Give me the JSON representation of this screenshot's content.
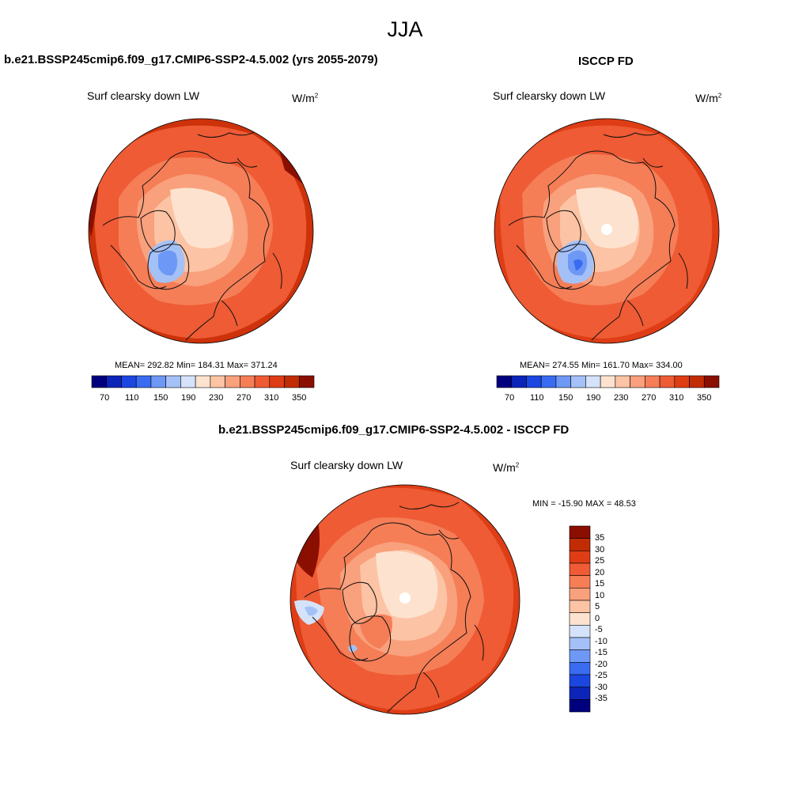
{
  "figure": {
    "season": "JJA"
  },
  "panels": [
    {
      "id": "model",
      "title": "b.e21.BSSP245cmip6.f09_g17.CMIP6-SSP2-4.5.002 (yrs 2055-2079)",
      "variable": "Surf clearsky down LW",
      "units_base": "W/m",
      "units_exp": "2",
      "stats": "MEAN= 292.82  Min= 184.31  Max= 371.24",
      "colorbar_labels": [
        "70",
        "110",
        "150",
        "190",
        "230",
        "270",
        "310",
        "350"
      ]
    },
    {
      "id": "obs",
      "title": "ISCCP FD",
      "variable": "Surf clearsky down LW",
      "units_base": "W/m",
      "units_exp": "2",
      "stats": "MEAN= 274.55  Min= 161.70  Max= 334.00",
      "colorbar_labels": [
        "70",
        "110",
        "150",
        "190",
        "230",
        "270",
        "310",
        "350"
      ]
    },
    {
      "id": "diff",
      "title": "b.e21.BSSP245cmip6.f09_g17.CMIP6-SSP2-4.5.002 - ISCCP FD",
      "variable": "Surf clearsky down LW",
      "units_base": "W/m",
      "units_exp": "2",
      "stats": "MIN = -15.90 MAX =  48.53",
      "colorbar_labels": [
        "35",
        "30",
        "25",
        "20",
        "15",
        "10",
        "5",
        "0",
        "-5",
        "-10",
        "-15",
        "-20",
        "-25",
        "-30",
        "-35"
      ]
    }
  ],
  "colors": {
    "abs_scale": [
      "#00007f",
      "#0d24b8",
      "#1c46e0",
      "#3a6cf2",
      "#6e98f5",
      "#a4c1f7",
      "#d4e3fa",
      "#fde3cf",
      "#fcc3a4",
      "#f9a07c",
      "#f57e57",
      "#ee5b34",
      "#de3d15",
      "#c22c05",
      "#8b0f00"
    ],
    "diff_scale": [
      "#00007f",
      "#0d24b8",
      "#1c46e0",
      "#3a6cf2",
      "#6e98f5",
      "#a4c1f7",
      "#d4e3fa",
      "#fde3cf",
      "#fcc3a4",
      "#f9a07c",
      "#f57e57",
      "#ee5b34",
      "#de3d15",
      "#c22c05",
      "#8b0f00"
    ]
  },
  "map_data": {
    "projection": "north polar stereographic",
    "fields": [
      {
        "panel": "model",
        "pole_value_level": 7,
        "outer_value_level": 12,
        "greenland_min_level": 4
      },
      {
        "panel": "obs",
        "pole_value_level": 7,
        "outer_value_level": 11,
        "greenland_min_level": 4,
        "pole_missing": true
      },
      {
        "panel": "diff",
        "pole_value_level": 7,
        "outer_value_level": 12,
        "greenland_min_level": 6,
        "pole_missing": true
      }
    ]
  }
}
